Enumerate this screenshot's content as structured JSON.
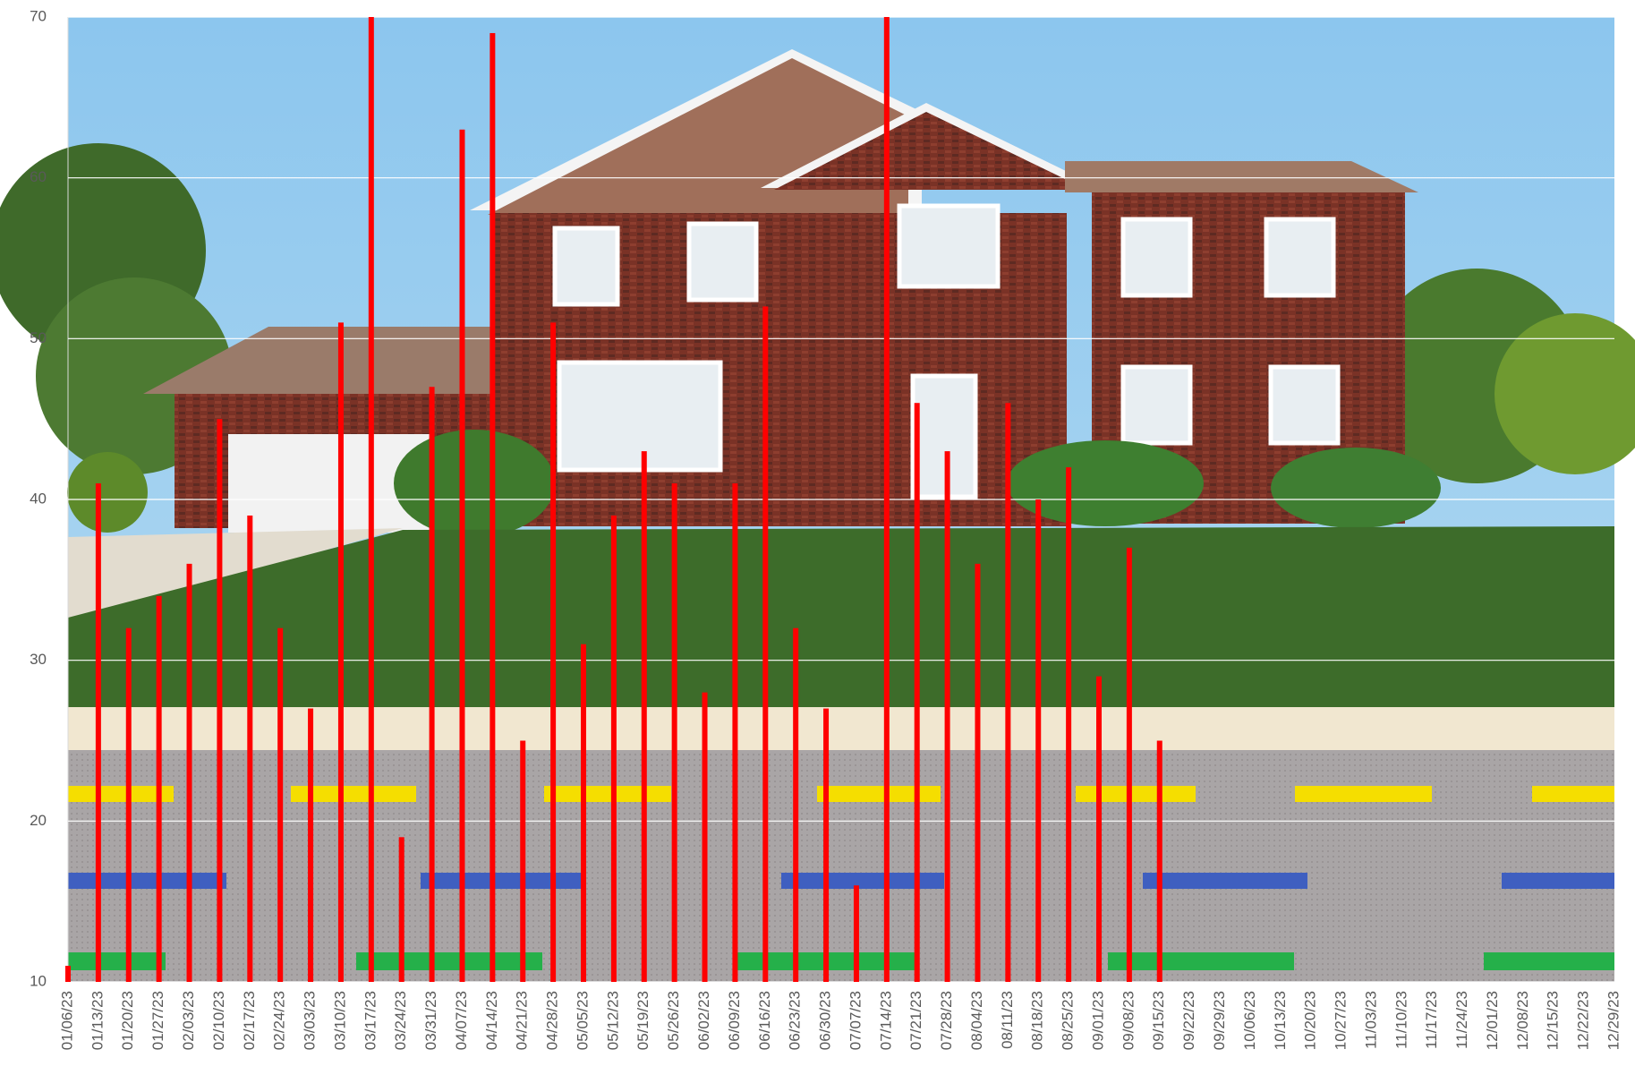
{
  "chart_data": {
    "type": "bar",
    "categories": [
      "01/06/23",
      "01/13/23",
      "01/20/23",
      "01/27/23",
      "02/03/23",
      "02/10/23",
      "02/17/23",
      "02/24/23",
      "03/03/23",
      "03/10/23",
      "03/17/23",
      "03/24/23",
      "03/31/23",
      "04/07/23",
      "04/14/23",
      "04/21/23",
      "04/28/23",
      "05/05/23",
      "05/12/23",
      "05/19/23",
      "05/26/23",
      "06/02/23",
      "06/09/23",
      "06/16/23",
      "06/23/23",
      "06/30/23",
      "07/07/23",
      "07/14/23",
      "07/21/23",
      "07/28/23",
      "08/04/23",
      "08/11/23",
      "08/18/23",
      "08/25/23",
      "09/01/23",
      "09/08/23",
      "09/15/23",
      "09/22/23",
      "09/29/23",
      "10/06/23",
      "10/13/23",
      "10/20/23",
      "10/27/23",
      "11/03/23",
      "11/10/23",
      "11/17/23",
      "11/24/23",
      "12/01/23",
      "12/08/23",
      "12/15/23",
      "12/22/23",
      "12/29/23"
    ],
    "values": [
      11,
      41,
      32,
      34,
      36,
      45,
      39,
      32,
      27,
      51,
      70,
      19,
      47,
      63,
      69,
      25,
      51,
      31,
      39,
      43,
      41,
      28,
      41,
      52,
      32,
      27,
      16,
      70,
      46,
      43,
      36,
      46,
      40,
      42,
      29,
      37,
      25,
      null,
      null,
      null,
      null,
      null,
      null,
      null,
      null,
      null,
      null,
      null,
      null,
      null,
      null,
      null
    ],
    "color": "#ff0000",
    "ylim": [
      10,
      70
    ],
    "yticks": [
      10,
      20,
      30,
      40,
      50,
      60,
      70
    ],
    "grid": true
  }
}
